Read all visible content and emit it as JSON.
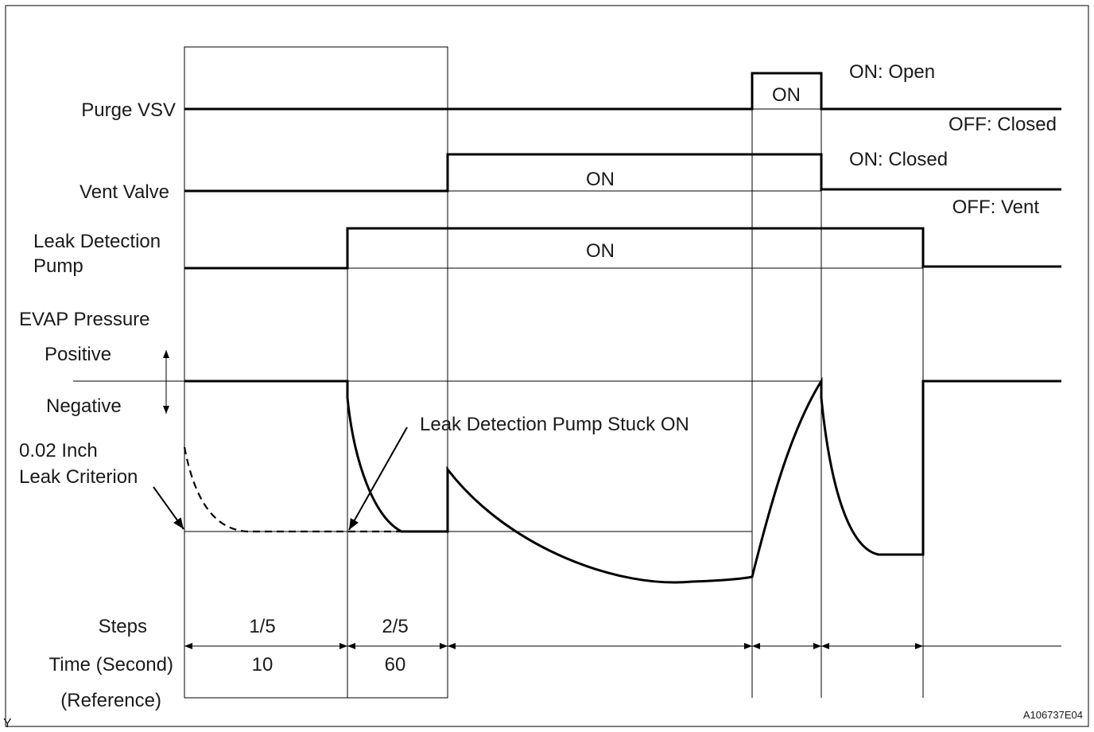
{
  "signals": {
    "purge_vsv": "Purge VSV",
    "vent_valve": "Vent Valve",
    "leak_pump_line1": "Leak Detection",
    "leak_pump_line2": "Pump",
    "evap_pressure": "EVAP Pressure",
    "positive": "Positive",
    "negative": "Negative"
  },
  "criterion": {
    "line1": "0.02 Inch",
    "line2": "Leak Criterion"
  },
  "states": {
    "purge_on": "ON",
    "purge_on_desc": "ON: Open",
    "purge_off_desc": "OFF: Closed",
    "vent_on": "ON",
    "vent_on_desc": "ON: Closed",
    "vent_off_desc": "OFF: Vent",
    "pump_on": "ON"
  },
  "annotation": {
    "stuck_on": "Leak Detection Pump Stuck ON"
  },
  "table": {
    "steps_label": "Steps",
    "time_label": "Time (Second)",
    "reference_label": "(Reference)",
    "steps": [
      "1/5",
      "2/5"
    ],
    "times": [
      "10",
      "60"
    ]
  },
  "footer": {
    "corner_letter": "Y",
    "figure_code": "A106737E04"
  }
}
